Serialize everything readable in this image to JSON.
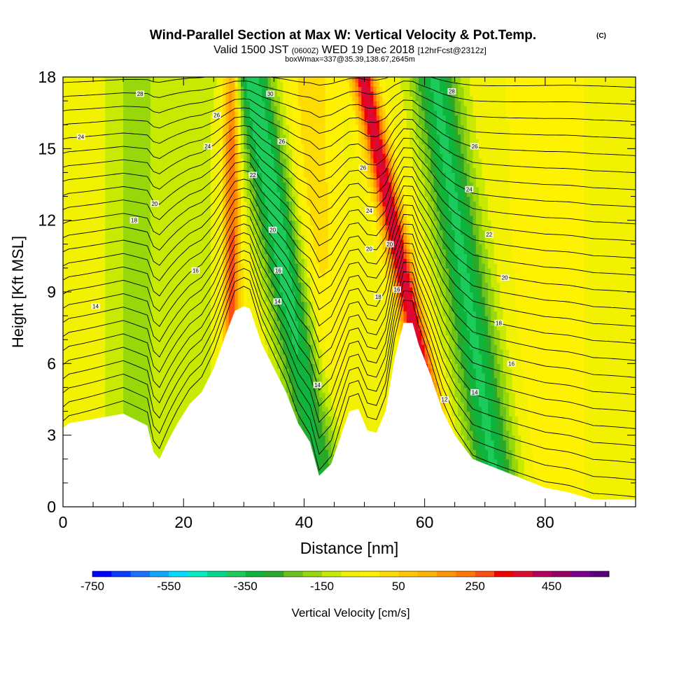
{
  "header": {
    "title": "Wind-Parallel Section at Max W: Vertical Velocity & Pot.Temp.",
    "copyright_mark": "(C)",
    "valid_prefix": "Valid 1500 JST",
    "valid_utc": "(0600Z)",
    "valid_date": "WED 19 Dec 2018",
    "forecast": "[12hrFcst@2312z]",
    "box_info": "boxWmax=337@35.39,138.67,2645m"
  },
  "chart_data": {
    "type": "heatmap",
    "xlabel": "Distance [nm]",
    "ylabel": "Height [Kft MSL]",
    "xlim": [
      0,
      95
    ],
    "ylim": [
      0,
      18
    ],
    "x_ticks": [
      0,
      20,
      40,
      60,
      80
    ],
    "y_ticks": [
      0,
      3,
      6,
      9,
      12,
      15,
      18
    ],
    "x_minor_step": 5,
    "y_minor_step": 1,
    "terrain_kft": [
      [
        0,
        3.3
      ],
      [
        1,
        3.5
      ],
      [
        10,
        3.9
      ],
      [
        14,
        3.4
      ],
      [
        15,
        2.3
      ],
      [
        16,
        2.0
      ],
      [
        17.5,
        2.8
      ],
      [
        19,
        3.5
      ],
      [
        21,
        4.3
      ],
      [
        23,
        4.8
      ],
      [
        25,
        5.8
      ],
      [
        27,
        7.2
      ],
      [
        28.5,
        8.2
      ],
      [
        30,
        8.4
      ],
      [
        31,
        8.3
      ],
      [
        33,
        6.8
      ],
      [
        35,
        5.8
      ],
      [
        37,
        4.8
      ],
      [
        39,
        3.5
      ],
      [
        41,
        2.7
      ],
      [
        42.5,
        1.3
      ],
      [
        44.5,
        1.8
      ],
      [
        46,
        2.9
      ],
      [
        47.5,
        4.0
      ],
      [
        49,
        4.1
      ],
      [
        50.5,
        3.2
      ],
      [
        52,
        3.1
      ],
      [
        53.5,
        4.0
      ],
      [
        55,
        6.2
      ],
      [
        56.5,
        7.7
      ],
      [
        58,
        7.7
      ],
      [
        59,
        6.8
      ],
      [
        61,
        5.5
      ],
      [
        63,
        4.0
      ],
      [
        65,
        3.0
      ],
      [
        68,
        2.0
      ],
      [
        71,
        1.7
      ],
      [
        74,
        1.4
      ],
      [
        77,
        1.1
      ],
      [
        80,
        0.8
      ],
      [
        84,
        0.6
      ],
      [
        88,
        0.3
      ],
      [
        95,
        0.3
      ]
    ],
    "vertical_velocity_bands": [
      {
        "x_center": 28.0,
        "x_width": 1.4,
        "slope_nm_per_kft": 0.0,
        "w": 330
      },
      {
        "x_center": 37.5,
        "x_width": 3.6,
        "slope_nm_per_kft": -0.7,
        "w": -330
      },
      {
        "x_center": 42.0,
        "x_width": 3.5,
        "slope_nm_per_kft": -0.1,
        "w": 90
      },
      {
        "x_center": 57.0,
        "x_width": 1.9,
        "slope_nm_per_kft": -0.8,
        "w": 460
      },
      {
        "x_center": 67.0,
        "x_width": 4.0,
        "slope_nm_per_kft": -0.6,
        "w": -300
      },
      {
        "x_center": 12.0,
        "x_width": 5.0,
        "slope_nm_per_kft": 0.0,
        "w": -110
      },
      {
        "x_center": 22.0,
        "x_width": 4.0,
        "slope_nm_per_kft": 0.0,
        "w": -60
      },
      {
        "x_center": 80.0,
        "x_width": 6.0,
        "slope_nm_per_kft": 0.0,
        "w": 30
      }
    ],
    "theta_contour_labels": [
      {
        "text": "28",
        "x": 12.8,
        "y": 17.3
      },
      {
        "text": "26",
        "x": 25.5,
        "y": 16.4
      },
      {
        "text": "24",
        "x": 3.0,
        "y": 15.5
      },
      {
        "text": "24",
        "x": 24.0,
        "y": 15.1
      },
      {
        "text": "20",
        "x": 15.2,
        "y": 12.7
      },
      {
        "text": "18",
        "x": 11.8,
        "y": 12.0
      },
      {
        "text": "16",
        "x": 22.0,
        "y": 9.9
      },
      {
        "text": "14",
        "x": 5.4,
        "y": 8.4
      },
      {
        "text": "30",
        "x": 34.4,
        "y": 17.3
      },
      {
        "text": "26",
        "x": 36.3,
        "y": 15.3
      },
      {
        "text": "22",
        "x": 31.5,
        "y": 13.9
      },
      {
        "text": "20",
        "x": 34.8,
        "y": 11.6
      },
      {
        "text": "16",
        "x": 35.7,
        "y": 9.9
      },
      {
        "text": "14",
        "x": 35.6,
        "y": 8.6
      },
      {
        "text": "14",
        "x": 42.2,
        "y": 5.1
      },
      {
        "text": "26",
        "x": 49.8,
        "y": 14.2
      },
      {
        "text": "24",
        "x": 50.8,
        "y": 12.4
      },
      {
        "text": "20",
        "x": 50.8,
        "y": 10.8
      },
      {
        "text": "20",
        "x": 54.2,
        "y": 11.0
      },
      {
        "text": "18",
        "x": 52.3,
        "y": 8.8
      },
      {
        "text": "16",
        "x": 55.4,
        "y": 9.1
      },
      {
        "text": "28",
        "x": 64.5,
        "y": 17.4
      },
      {
        "text": "26",
        "x": 68.3,
        "y": 15.1
      },
      {
        "text": "24",
        "x": 67.4,
        "y": 13.3
      },
      {
        "text": "22",
        "x": 70.7,
        "y": 11.4
      },
      {
        "text": "20",
        "x": 73.3,
        "y": 9.6
      },
      {
        "text": "18",
        "x": 72.3,
        "y": 7.7
      },
      {
        "text": "16",
        "x": 74.4,
        "y": 6.0
      },
      {
        "text": "14",
        "x": 68.3,
        "y": 4.8
      },
      {
        "text": "12",
        "x": 63.3,
        "y": 4.5
      }
    ]
  },
  "colorbar": {
    "title": "Vertical Velocity [cm/s]",
    "min": -750,
    "step": 50,
    "labels": [
      "-750",
      "-550",
      "-350",
      "-150",
      "50",
      "250",
      "450"
    ],
    "colors": [
      "#0000ff",
      "#0a3cff",
      "#1c6fff",
      "#13a8ff",
      "#00dcff",
      "#00eec0",
      "#00d890",
      "#1ccc5a",
      "#0fb43c",
      "#2aa82a",
      "#6ac21a",
      "#98d80a",
      "#c8ea00",
      "#f2f200",
      "#fff200",
      "#ffdc00",
      "#ffc800",
      "#ffb400",
      "#ff9600",
      "#ff7800",
      "#ff4e14",
      "#f00000",
      "#dc0a32",
      "#b4005a",
      "#960064",
      "#78008c",
      "#5a0078"
    ]
  }
}
